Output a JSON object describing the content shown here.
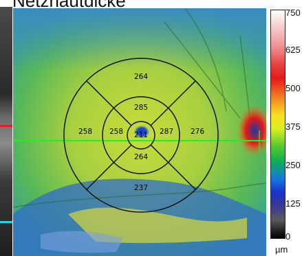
{
  "title": "Netzhautdicke",
  "colorbar": {
    "ticks": [
      "750",
      "625",
      "500",
      "375",
      "250",
      "125",
      "0"
    ],
    "unit": "µm"
  },
  "thickness_grid": {
    "center": "211",
    "inner_superior": "285",
    "inner_temporal": "258",
    "inner_nasal": "287",
    "inner_inferior": "264",
    "outer_superior": "264",
    "outer_temporal": "258",
    "outer_nasal": "276",
    "outer_inferior": "237"
  },
  "colors": {
    "scan_line": "#22ee22",
    "grid_lines": "#111111"
  }
}
